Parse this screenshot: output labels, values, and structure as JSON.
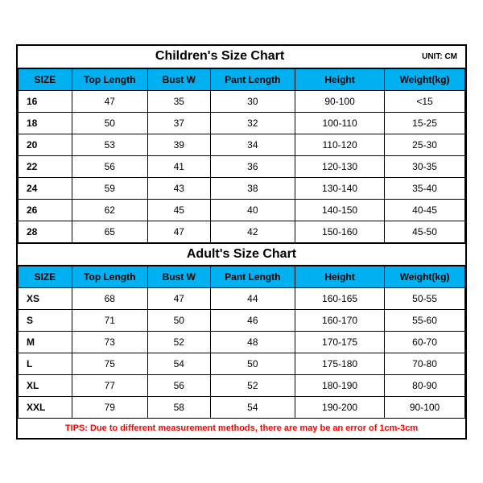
{
  "unit_label": "UNIT: CM",
  "tips": "TIPS: Due to different measurement methods, there are may be an error of 1cm-3cm",
  "colors": {
    "header_bg": "#00b0f0",
    "border": "#000000",
    "tips_text": "#ff0000",
    "background": "#ffffff"
  },
  "children": {
    "title": "Children's Size Chart",
    "columns": [
      "SIZE",
      "Top Length",
      "Bust W",
      "Pant Length",
      "Height",
      "Weight(kg)"
    ],
    "rows": [
      [
        "16",
        "47",
        "35",
        "30",
        "90-100",
        "<15"
      ],
      [
        "18",
        "50",
        "37",
        "32",
        "100-110",
        "15-25"
      ],
      [
        "20",
        "53",
        "39",
        "34",
        "110-120",
        "25-30"
      ],
      [
        "22",
        "56",
        "41",
        "36",
        "120-130",
        "30-35"
      ],
      [
        "24",
        "59",
        "43",
        "38",
        "130-140",
        "35-40"
      ],
      [
        "26",
        "62",
        "45",
        "40",
        "140-150",
        "40-45"
      ],
      [
        "28",
        "65",
        "47",
        "42",
        "150-160",
        "45-50"
      ]
    ]
  },
  "adult": {
    "title": "Adult's Size Chart",
    "columns": [
      "SIZE",
      "Top Length",
      "Bust W",
      "Pant Length",
      "Height",
      "Weight(kg)"
    ],
    "rows": [
      [
        "XS",
        "68",
        "47",
        "44",
        "160-165",
        "50-55"
      ],
      [
        "S",
        "71",
        "50",
        "46",
        "160-170",
        "55-60"
      ],
      [
        "M",
        "73",
        "52",
        "48",
        "170-175",
        "60-70"
      ],
      [
        "L",
        "75",
        "54",
        "50",
        "175-180",
        "70-80"
      ],
      [
        "XL",
        "77",
        "56",
        "52",
        "180-190",
        "80-90"
      ],
      [
        "XXL",
        "79",
        "58",
        "54",
        "190-200",
        "90-100"
      ]
    ]
  }
}
